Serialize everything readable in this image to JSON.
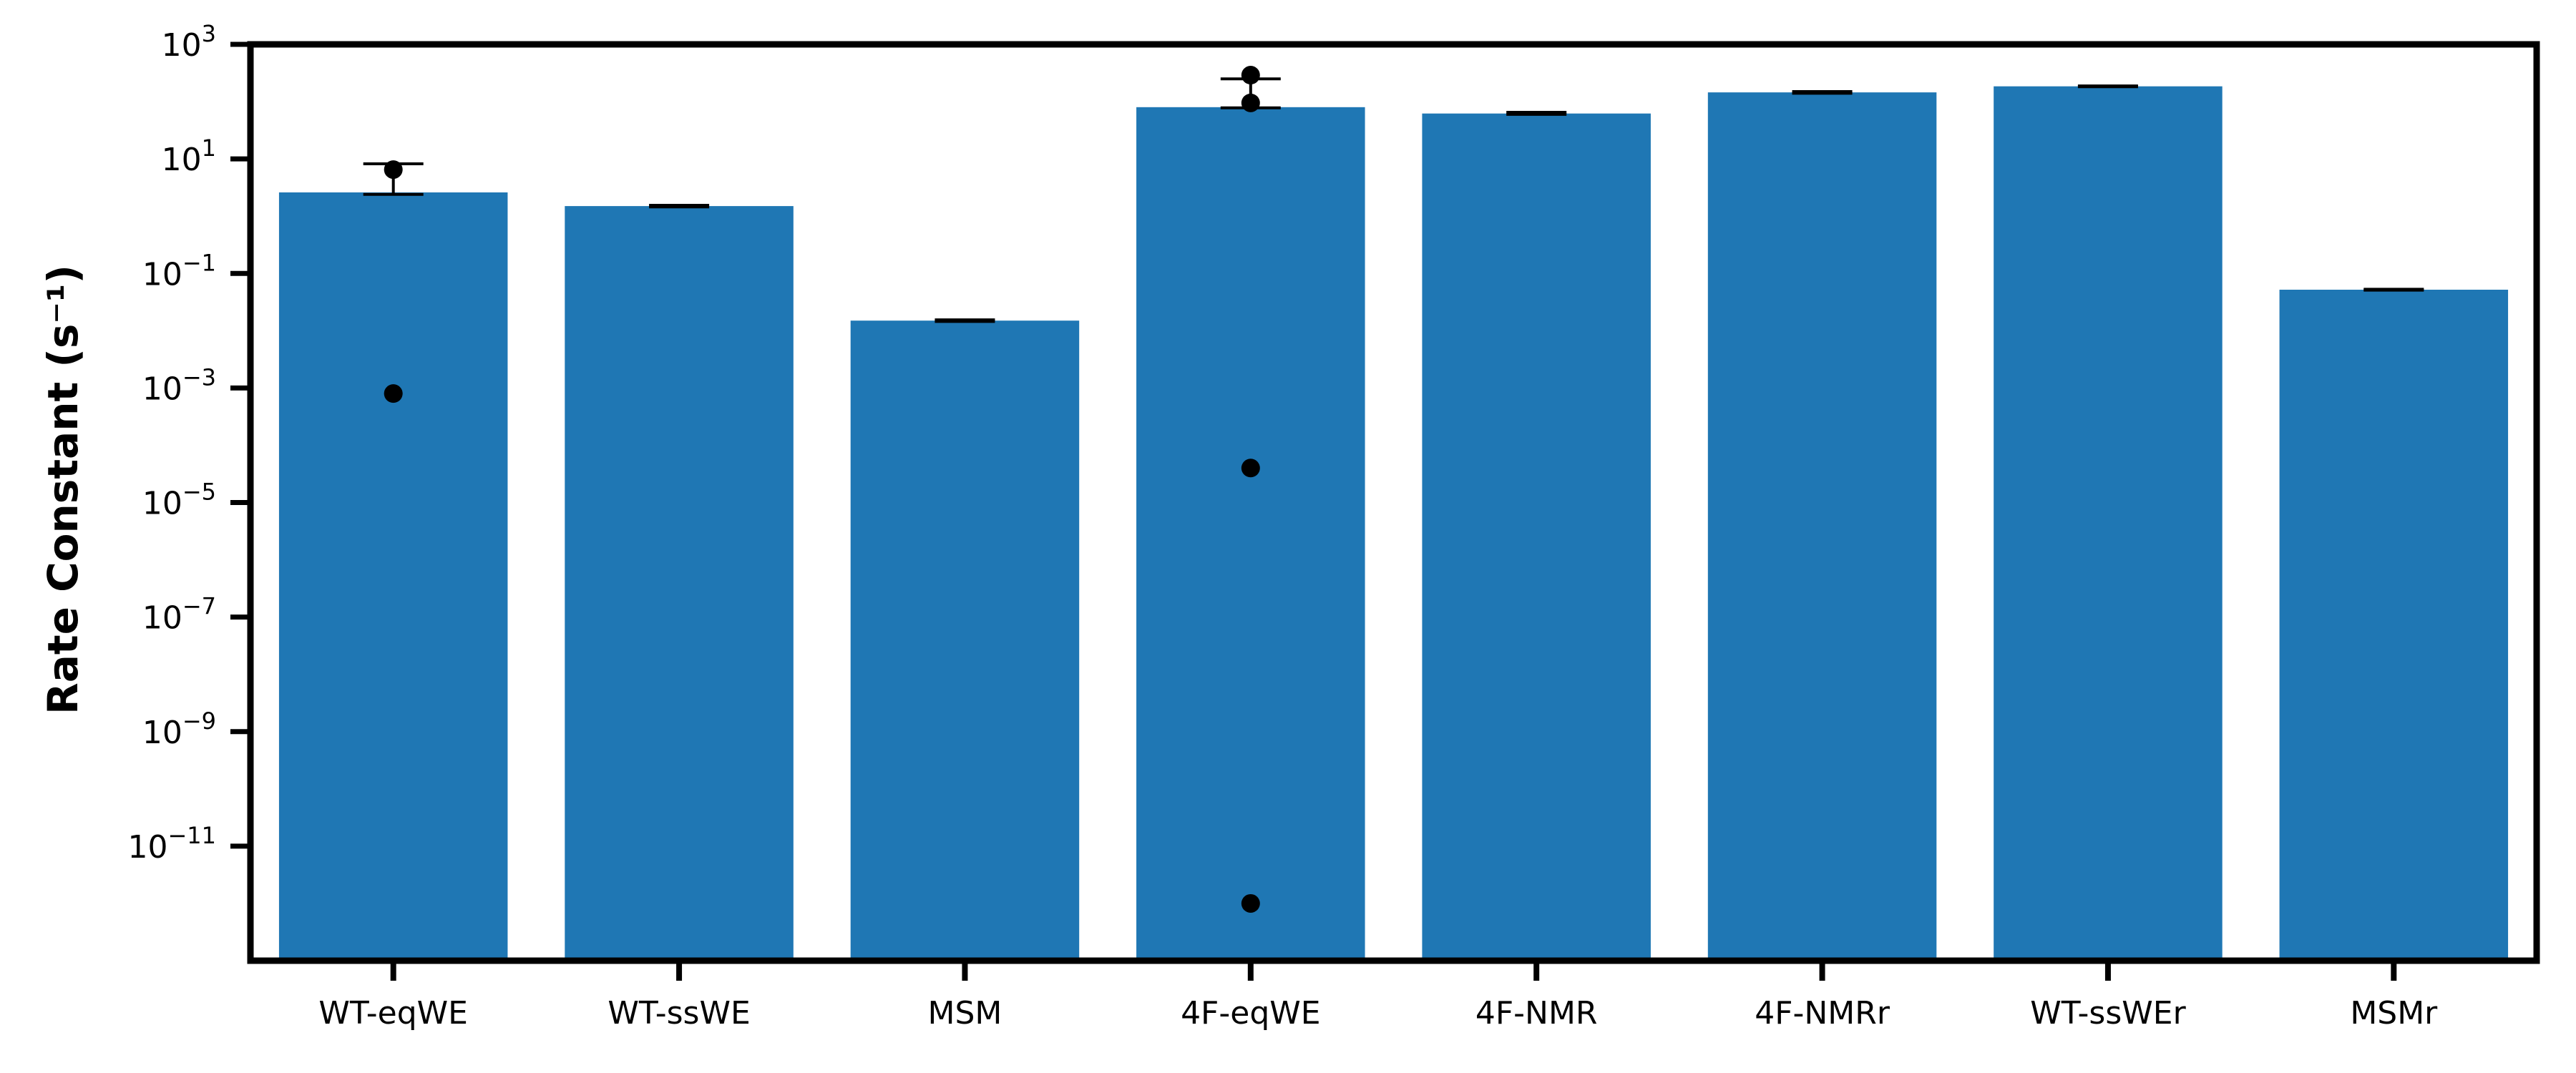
{
  "chart_data": {
    "type": "bar",
    "ylabel": "Rate Constant (s⁻¹)",
    "yscale": "log",
    "ylim": [
      1e-13,
      1000
    ],
    "yticks": [
      {
        "base": "10",
        "exp": "3"
      },
      {
        "base": "10",
        "exp": "1"
      },
      {
        "base": "10",
        "exp": "−1"
      },
      {
        "base": "10",
        "exp": "−3"
      },
      {
        "base": "10",
        "exp": "−5"
      },
      {
        "base": "10",
        "exp": "−7"
      },
      {
        "base": "10",
        "exp": "−9"
      },
      {
        "base": "10",
        "exp": "−11"
      }
    ],
    "ytick_values": [
      1000,
      10,
      0.1,
      0.001,
      1e-05,
      1e-07,
      1e-09,
      1e-11
    ],
    "categories": [
      "WT-eqWE",
      "WT-ssWE",
      "MSM",
      "4F-eqWE",
      "4F-NMR",
      "4F-NMRr",
      "WT-ssWEr",
      "MSMr"
    ],
    "values": [
      2.6,
      1.5,
      0.015,
      80,
      62,
      145,
      185,
      0.052
    ],
    "error_upper": [
      8.2,
      1.55,
      0.0155,
      250,
      65,
      150,
      188,
      0.053
    ],
    "error_lower": [
      2.4,
      1.45,
      0.0145,
      78,
      60,
      140,
      182,
      0.051
    ],
    "points": [
      {
        "category": "WT-eqWE",
        "values": [
          6.5,
          0.0008
        ]
      },
      {
        "category": "4F-eqWE",
        "values": [
          290,
          95,
          4e-05,
          1e-12
        ]
      }
    ],
    "bar_color": "#1f77b4",
    "grid": false
  }
}
